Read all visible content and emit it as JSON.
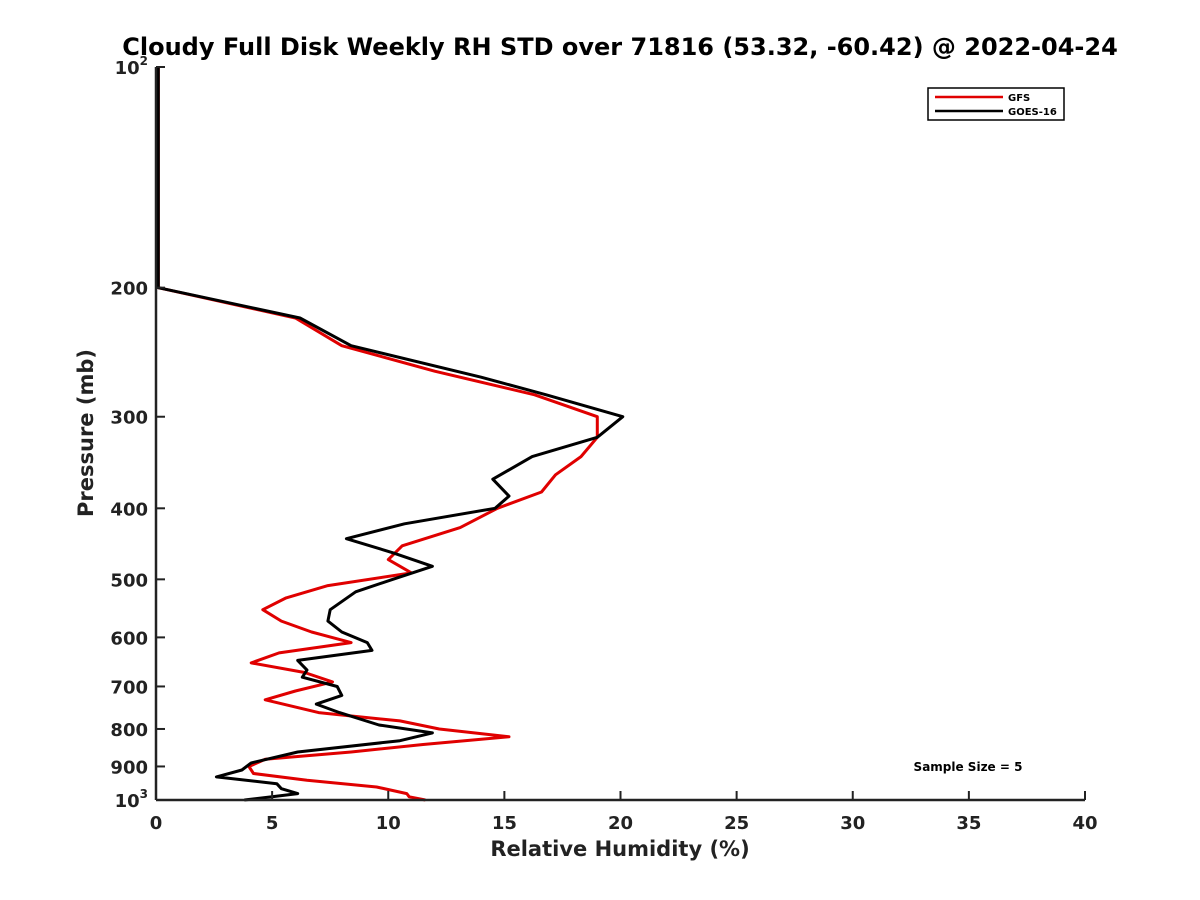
{
  "chart_data": {
    "type": "line",
    "title": "Cloudy Full Disk Weekly RH STD over 71816 (53.32, -60.42) @ 2022-04-24",
    "xlabel": "Relative Humidity (%)",
    "ylabel": "Pressure (mb)",
    "xlim": [
      0,
      40
    ],
    "ylim": [
      100,
      1000
    ],
    "yscale": "log",
    "y_reversed": true,
    "x_ticks": [
      "0",
      "5",
      "10",
      "15",
      "20",
      "25",
      "30",
      "35",
      "40"
    ],
    "y_ticks": [
      {
        "value": 100,
        "base": "10",
        "exp": "2"
      },
      {
        "value": 200,
        "label": "200"
      },
      {
        "value": 300,
        "label": "300"
      },
      {
        "value": 400,
        "label": "400"
      },
      {
        "value": 500,
        "label": "500"
      },
      {
        "value": 600,
        "label": "600"
      },
      {
        "value": 700,
        "label": "700"
      },
      {
        "value": 800,
        "label": "800"
      },
      {
        "value": 900,
        "label": "900"
      },
      {
        "value": 1000,
        "base": "10",
        "exp": "3"
      }
    ],
    "legend_position": "top-right",
    "annotation": "Sample Size = 5",
    "series": [
      {
        "name": "GFS",
        "color": "#e00000",
        "points": [
          [
            0.1,
            100
          ],
          [
            0.1,
            150
          ],
          [
            0.1,
            200
          ],
          [
            6.0,
            220
          ],
          [
            8.0,
            240
          ],
          [
            12.0,
            260
          ],
          [
            16.3,
            280
          ],
          [
            19.0,
            300
          ],
          [
            19.0,
            320
          ],
          [
            18.3,
            340
          ],
          [
            17.2,
            360
          ],
          [
            16.6,
            380
          ],
          [
            14.7,
            400
          ],
          [
            13.1,
            425
          ],
          [
            10.6,
            450
          ],
          [
            10.0,
            470
          ],
          [
            11.0,
            490
          ],
          [
            7.4,
            510
          ],
          [
            5.6,
            530
          ],
          [
            4.6,
            550
          ],
          [
            5.4,
            570
          ],
          [
            6.7,
            590
          ],
          [
            8.4,
            610
          ],
          [
            5.3,
            630
          ],
          [
            4.1,
            650
          ],
          [
            6.4,
            670
          ],
          [
            7.6,
            690
          ],
          [
            6.0,
            710
          ],
          [
            4.7,
            730
          ],
          [
            7.0,
            760
          ],
          [
            10.5,
            780
          ],
          [
            12.2,
            800
          ],
          [
            15.2,
            820
          ],
          [
            11.5,
            840
          ],
          [
            8.4,
            860
          ],
          [
            4.7,
            880
          ],
          [
            4.0,
            900
          ],
          [
            4.2,
            920
          ],
          [
            6.5,
            940
          ],
          [
            9.5,
            960
          ],
          [
            10.8,
            980
          ],
          [
            10.9,
            990
          ],
          [
            11.6,
            1000
          ]
        ]
      },
      {
        "name": "GOES-16",
        "color": "#000000",
        "points": [
          [
            0.1,
            100
          ],
          [
            0.1,
            150
          ],
          [
            0.1,
            200
          ],
          [
            6.2,
            220
          ],
          [
            8.4,
            240
          ],
          [
            14.0,
            265
          ],
          [
            16.8,
            280
          ],
          [
            20.1,
            300
          ],
          [
            19.0,
            320
          ],
          [
            16.2,
            340
          ],
          [
            14.5,
            365
          ],
          [
            15.2,
            385
          ],
          [
            14.6,
            400
          ],
          [
            10.7,
            420
          ],
          [
            8.2,
            440
          ],
          [
            10.2,
            460
          ],
          [
            11.9,
            480
          ],
          [
            10.2,
            500
          ],
          [
            8.6,
            520
          ],
          [
            7.5,
            550
          ],
          [
            7.4,
            570
          ],
          [
            8.0,
            590
          ],
          [
            9.1,
            610
          ],
          [
            9.3,
            625
          ],
          [
            6.1,
            645
          ],
          [
            6.5,
            665
          ],
          [
            6.3,
            680
          ],
          [
            7.8,
            700
          ],
          [
            8.0,
            720
          ],
          [
            6.9,
            740
          ],
          [
            7.9,
            760
          ],
          [
            9.6,
            790
          ],
          [
            11.9,
            810
          ],
          [
            10.5,
            830
          ],
          [
            6.1,
            860
          ],
          [
            4.1,
            890
          ],
          [
            3.7,
            910
          ],
          [
            2.6,
            930
          ],
          [
            5.2,
            950
          ],
          [
            5.4,
            965
          ],
          [
            6.1,
            980
          ],
          [
            5.0,
            990
          ],
          [
            3.8,
            1000
          ]
        ]
      }
    ]
  }
}
